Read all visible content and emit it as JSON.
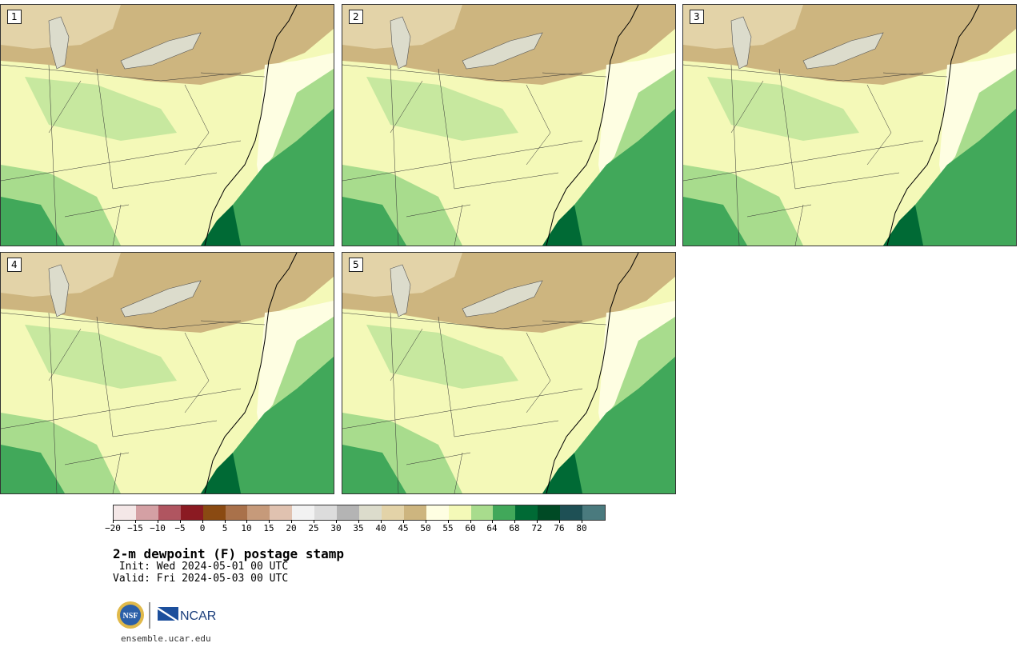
{
  "panels": [
    {
      "label": "1"
    },
    {
      "label": "2"
    },
    {
      "label": "3"
    },
    {
      "label": "4"
    },
    {
      "label": "5"
    }
  ],
  "colorbar": {
    "colors": [
      "#f4e7e7",
      "#d4a0a4",
      "#b05560",
      "#8b1a22",
      "#8a4a12",
      "#a9714a",
      "#c69a7a",
      "#e0c2b0",
      "#f2f2f2",
      "#dcdcdc",
      "#b4b4b4",
      "#dcdccc",
      "#e3d3a8",
      "#cdb57f",
      "#fefee2",
      "#f4f9b8",
      "#a8dc8d",
      "#41a85a",
      "#006a35",
      "#004a25",
      "#1e5055",
      "#4a7a7e"
    ],
    "tick_labels": [
      "−20",
      "−15",
      "−10",
      "−5",
      "0",
      "5",
      "10",
      "15",
      "20",
      "25",
      "30",
      "35",
      "40",
      "45",
      "50",
      "55",
      "60",
      "64",
      "68",
      "72",
      "76",
      "80"
    ]
  },
  "title": "2-m dewpoint (F) postage stamp",
  "init": " Init: Wed 2024-05-01 00 UTC",
  "valid": "Valid: Fri 2024-05-03 00 UTC",
  "logos": {
    "nsf": "NSF",
    "ncar": "NCAR"
  },
  "site": "ensemble.ucar.edu"
}
